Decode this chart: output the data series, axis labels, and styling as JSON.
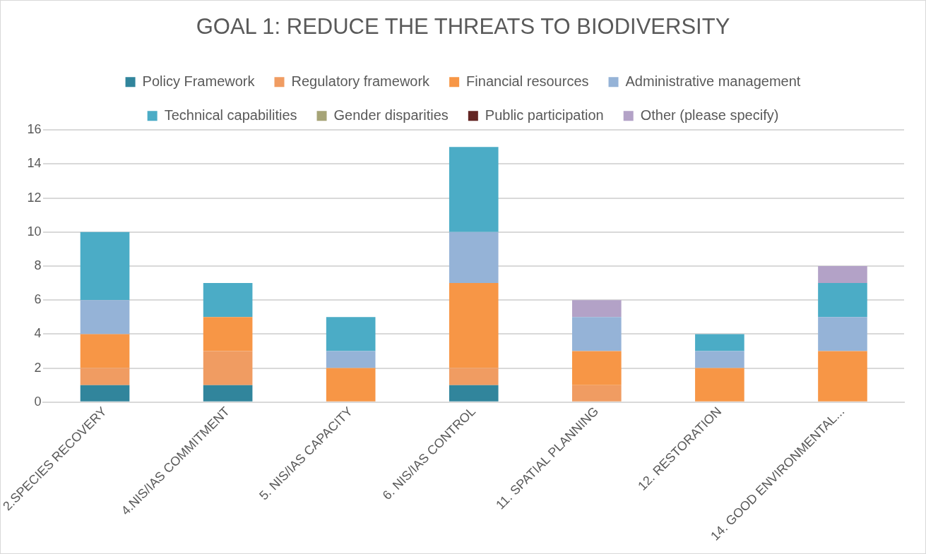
{
  "chart_data": {
    "type": "bar",
    "title": "GOAL 1: REDUCE THE THREATS TO BIODIVERSITY",
    "categories": [
      "2.SPECIES RECOVERY",
      "4.NIS/IAS COMMITMENT",
      "5. NIS/IAS CAPACITY",
      "6. NIS/IAS CONTROL",
      "11. SPATIAL PLANNING",
      "12. RESTORATION",
      "14. GOOD ENVIRONMENTAL..."
    ],
    "series": [
      {
        "name": "Policy Framework",
        "color": "#31859c",
        "values": [
          1,
          1,
          0,
          1,
          0,
          0,
          0
        ]
      },
      {
        "name": "Regulatory framework",
        "color": "#f09c62",
        "values": [
          1,
          2,
          0,
          1,
          1,
          0,
          0
        ]
      },
      {
        "name": "Financial resources",
        "color": "#f79646",
        "values": [
          2,
          2,
          2,
          5,
          2,
          2,
          3
        ]
      },
      {
        "name": "Administrative management",
        "color": "#95b3d7",
        "values": [
          2,
          0,
          1,
          3,
          2,
          1,
          2
        ]
      },
      {
        "name": "Technical capabilities",
        "color": "#4bacc6",
        "values": [
          4,
          2,
          2,
          5,
          0,
          1,
          2
        ]
      },
      {
        "name": "Gender disparities",
        "color": "#a6a477",
        "values": [
          0,
          0,
          0,
          0,
          0,
          0,
          0
        ]
      },
      {
        "name": "Public participation",
        "color": "#632523",
        "values": [
          0,
          0,
          0,
          0,
          0,
          0,
          0
        ]
      },
      {
        "name": "Other (please specify)",
        "color": "#b3a2c7",
        "values": [
          0,
          0,
          0,
          0,
          1,
          0,
          1
        ]
      }
    ],
    "stacked": true,
    "ylim": [
      0,
      16
    ],
    "yticks": [
      0,
      2,
      4,
      6,
      8,
      10,
      12,
      14,
      16
    ],
    "grid": "y",
    "legend": "top"
  }
}
